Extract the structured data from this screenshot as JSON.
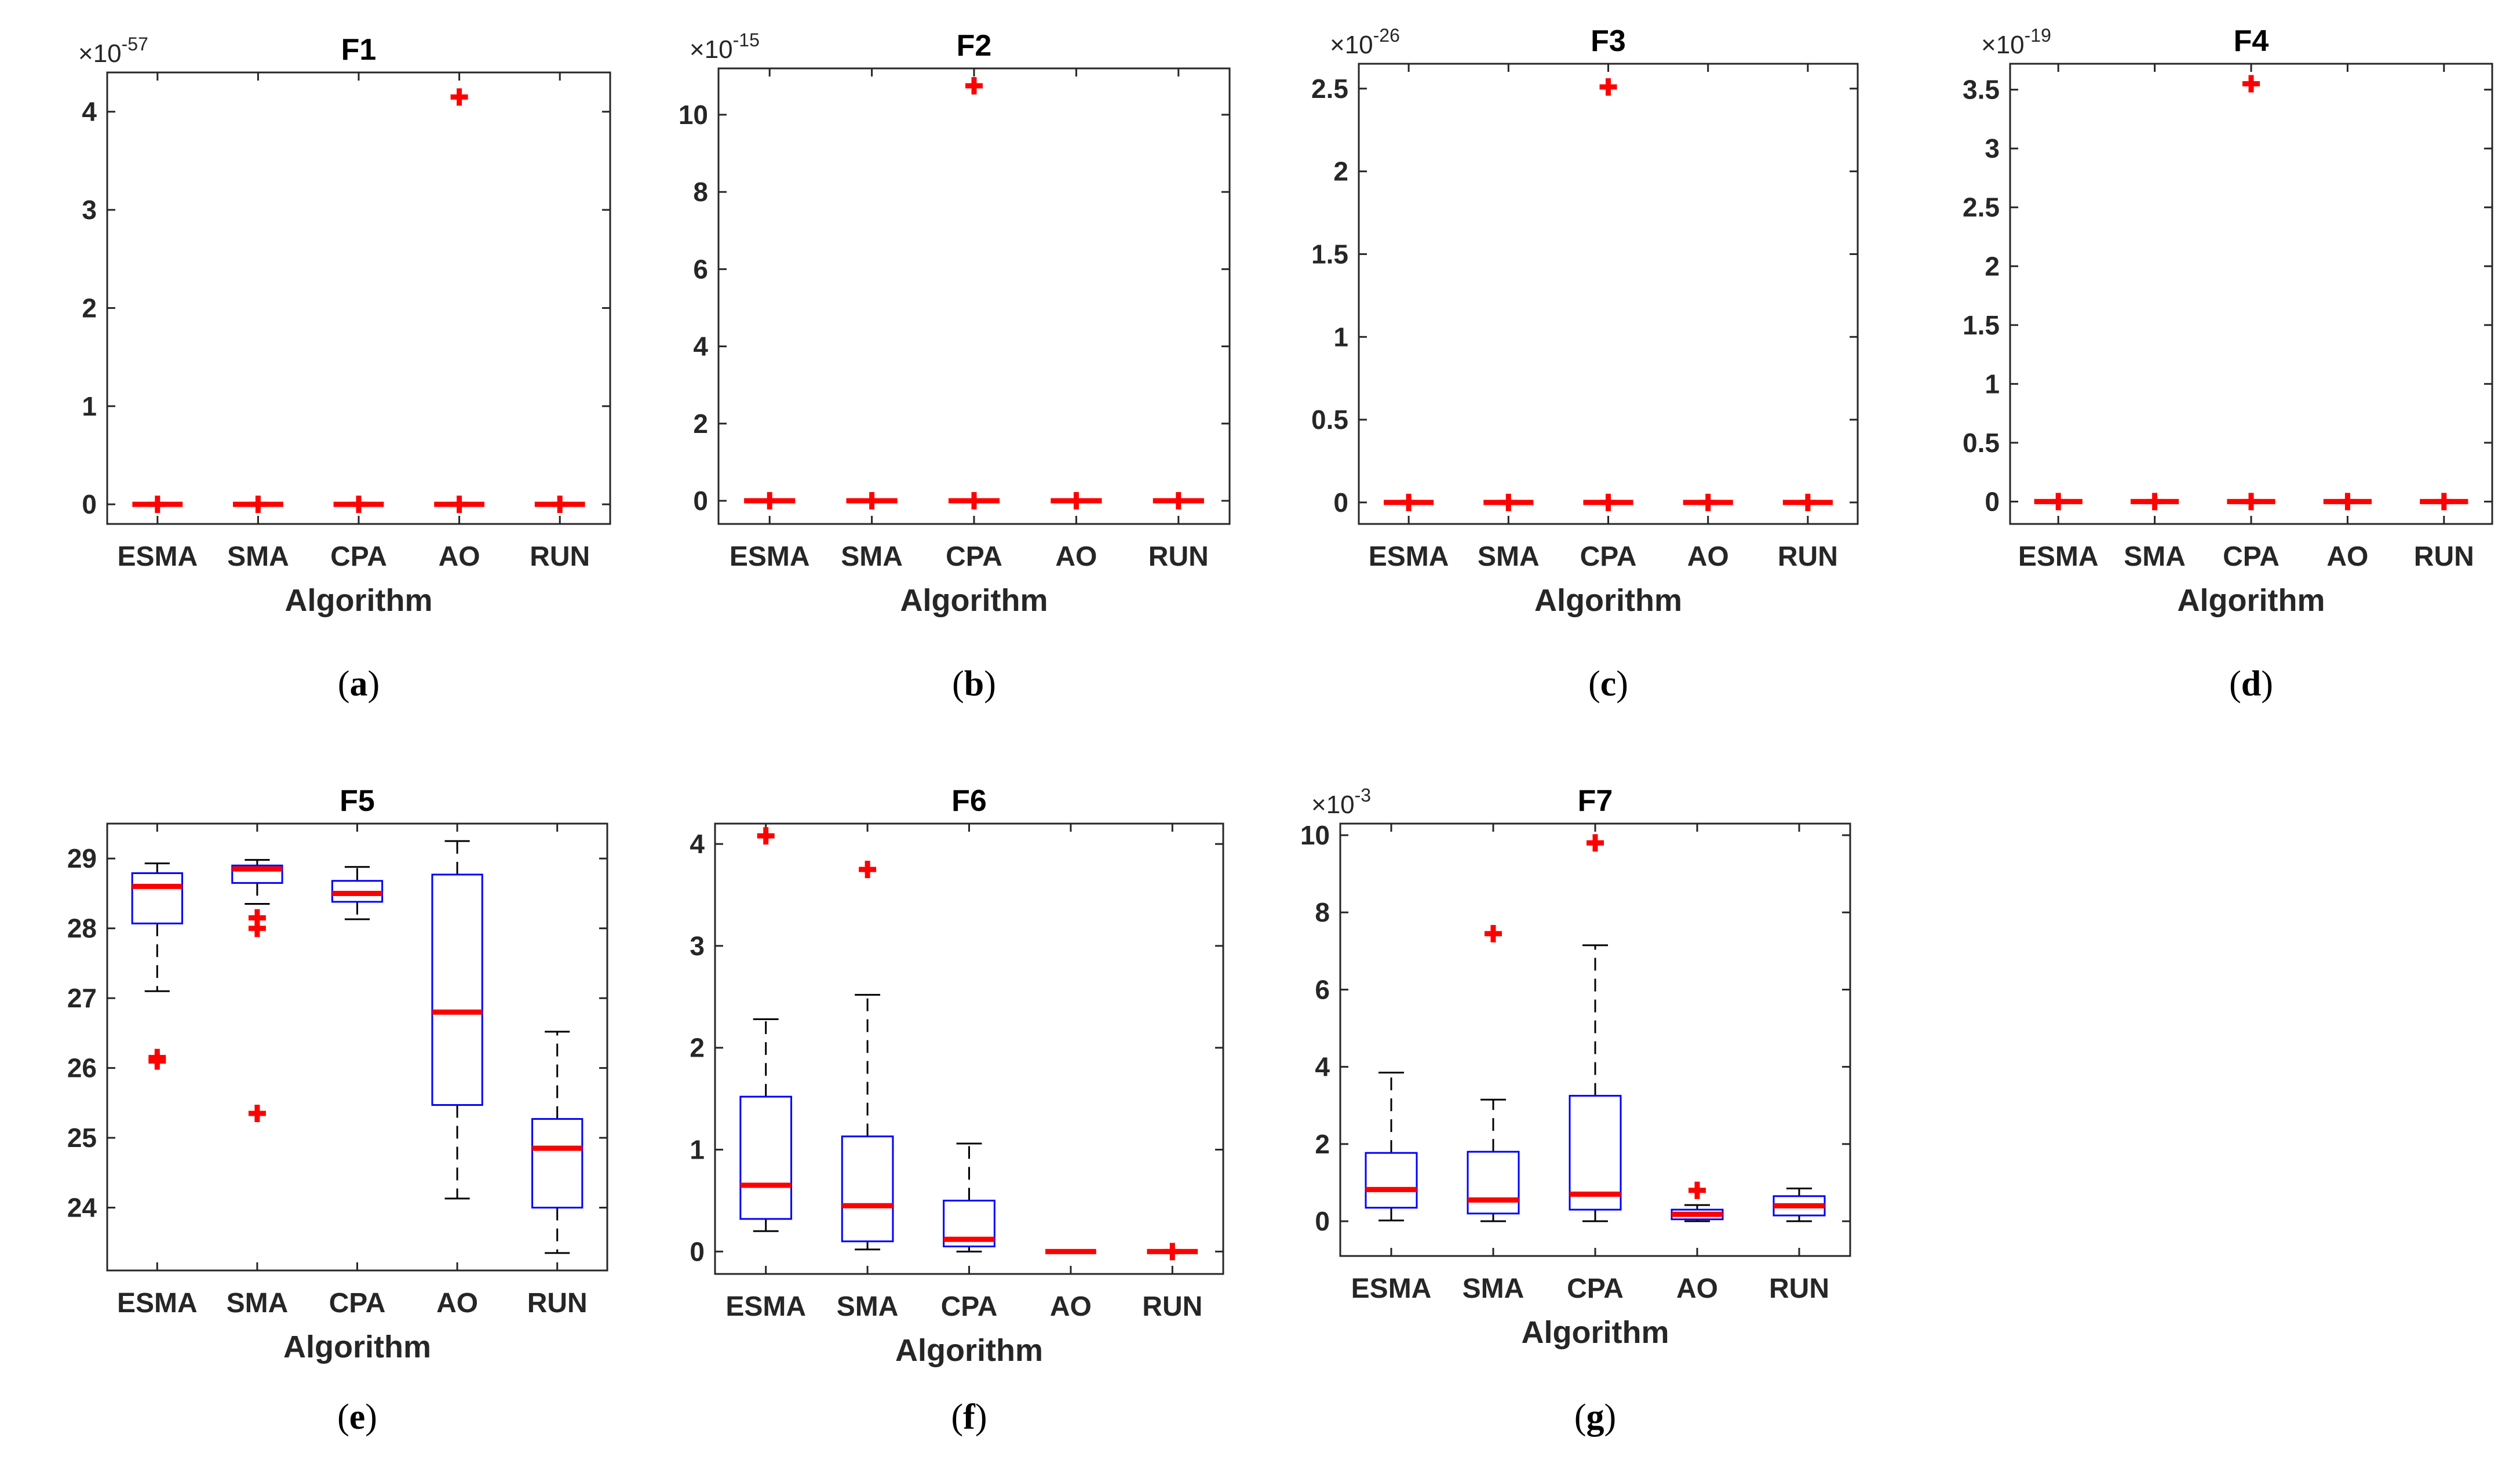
{
  "chart_data": [
    {
      "type": "box",
      "title": "F1",
      "xlabel": "Algorithm",
      "panel": "a",
      "exponent": "-57",
      "ylim": [
        -0.2,
        4.4
      ],
      "yticks": [
        0,
        1,
        2,
        3,
        4
      ],
      "categories": [
        "ESMA",
        "SMA",
        "CPA",
        "AO",
        "RUN"
      ],
      "boxes": [
        {
          "q1": 0,
          "median": 0,
          "q3": 0,
          "whisker_low": 0,
          "whisker_high": 0,
          "outliers": [
            0
          ]
        },
        {
          "q1": 0,
          "median": 0,
          "q3": 0,
          "whisker_low": 0,
          "whisker_high": 0,
          "outliers": [
            0
          ]
        },
        {
          "q1": 0,
          "median": 0,
          "q3": 0,
          "whisker_low": 0,
          "whisker_high": 0,
          "outliers": [
            0
          ]
        },
        {
          "q1": 0,
          "median": 0,
          "q3": 0,
          "whisker_low": 0,
          "whisker_high": 0,
          "outliers": [
            0,
            4.15
          ]
        },
        {
          "q1": 0,
          "median": 0,
          "q3": 0,
          "whisker_low": 0,
          "whisker_high": 0,
          "outliers": [
            0
          ]
        }
      ]
    },
    {
      "type": "box",
      "title": "F2",
      "xlabel": "Algorithm",
      "panel": "b",
      "exponent": "-15",
      "ylim": [
        -0.6,
        11.2
      ],
      "yticks": [
        0,
        2,
        4,
        6,
        8,
        10
      ],
      "categories": [
        "ESMA",
        "SMA",
        "CPA",
        "AO",
        "RUN"
      ],
      "boxes": [
        {
          "q1": 0,
          "median": 0,
          "q3": 0,
          "whisker_low": 0,
          "whisker_high": 0,
          "outliers": [
            0
          ]
        },
        {
          "q1": 0,
          "median": 0,
          "q3": 0,
          "whisker_low": 0,
          "whisker_high": 0,
          "outliers": [
            0
          ]
        },
        {
          "q1": 0,
          "median": 0,
          "q3": 0,
          "whisker_low": 0,
          "whisker_high": 0,
          "outliers": [
            0,
            10.75
          ]
        },
        {
          "q1": 0,
          "median": 0,
          "q3": 0,
          "whisker_low": 0,
          "whisker_high": 0,
          "outliers": [
            0
          ]
        },
        {
          "q1": 0,
          "median": 0,
          "q3": 0,
          "whisker_low": 0,
          "whisker_high": 0,
          "outliers": [
            0
          ]
        }
      ]
    },
    {
      "type": "box",
      "title": "F3",
      "xlabel": "Algorithm",
      "panel": "c",
      "exponent": "-26",
      "ylim": [
        -0.13,
        2.65
      ],
      "yticks": [
        0,
        0.5,
        1,
        1.5,
        2,
        2.5
      ],
      "categories": [
        "ESMA",
        "SMA",
        "CPA",
        "AO",
        "RUN"
      ],
      "boxes": [
        {
          "q1": 0,
          "median": 0,
          "q3": 0,
          "whisker_low": 0,
          "whisker_high": 0,
          "outliers": [
            0
          ]
        },
        {
          "q1": 0,
          "median": 0,
          "q3": 0,
          "whisker_low": 0,
          "whisker_high": 0,
          "outliers": [
            0
          ]
        },
        {
          "q1": 0,
          "median": 0,
          "q3": 0,
          "whisker_low": 0,
          "whisker_high": 0,
          "outliers": [
            0,
            2.51
          ]
        },
        {
          "q1": 0,
          "median": 0,
          "q3": 0,
          "whisker_low": 0,
          "whisker_high": 0,
          "outliers": [
            0
          ]
        },
        {
          "q1": 0,
          "median": 0,
          "q3": 0,
          "whisker_low": 0,
          "whisker_high": 0,
          "outliers": [
            0
          ]
        }
      ]
    },
    {
      "type": "box",
      "title": "F4",
      "xlabel": "Algorithm",
      "panel": "d",
      "exponent": "-19",
      "ylim": [
        -0.19,
        3.72
      ],
      "yticks": [
        0,
        0.5,
        1,
        1.5,
        2,
        2.5,
        3,
        3.5
      ],
      "categories": [
        "ESMA",
        "SMA",
        "CPA",
        "AO",
        "RUN"
      ],
      "boxes": [
        {
          "q1": 0,
          "median": 0,
          "q3": 0,
          "whisker_low": 0,
          "whisker_high": 0,
          "outliers": [
            0
          ]
        },
        {
          "q1": 0,
          "median": 0,
          "q3": 0,
          "whisker_low": 0,
          "whisker_high": 0,
          "outliers": [
            0
          ]
        },
        {
          "q1": 0,
          "median": 0,
          "q3": 0,
          "whisker_low": 0,
          "whisker_high": 0,
          "outliers": [
            0,
            3.55
          ]
        },
        {
          "q1": 0,
          "median": 0,
          "q3": 0,
          "whisker_low": 0,
          "whisker_high": 0,
          "outliers": [
            0
          ]
        },
        {
          "q1": 0,
          "median": 0,
          "q3": 0,
          "whisker_low": 0,
          "whisker_high": 0,
          "outliers": [
            0
          ]
        }
      ]
    },
    {
      "type": "box",
      "title": "F5",
      "xlabel": "Algorithm",
      "panel": "e",
      "exponent": "",
      "ylim": [
        23.1,
        29.5
      ],
      "yticks": [
        24,
        25,
        26,
        27,
        28,
        29
      ],
      "categories": [
        "ESMA",
        "SMA",
        "CPA",
        "AO",
        "RUN"
      ],
      "boxes": [
        {
          "q1": 28.07,
          "median": 28.6,
          "q3": 28.79,
          "whisker_low": 27.1,
          "whisker_high": 28.93,
          "outliers": [
            26.1,
            26.15
          ]
        },
        {
          "q1": 28.65,
          "median": 28.85,
          "q3": 28.9,
          "whisker_low": 28.35,
          "whisker_high": 28.98,
          "outliers": [
            28.15,
            28.0,
            25.35
          ]
        },
        {
          "q1": 28.38,
          "median": 28.5,
          "q3": 28.68,
          "whisker_low": 28.13,
          "whisker_high": 28.88,
          "outliers": []
        },
        {
          "q1": 25.47,
          "median": 26.8,
          "q3": 28.77,
          "whisker_low": 24.13,
          "whisker_high": 29.25,
          "outliers": []
        },
        {
          "q1": 24.0,
          "median": 24.85,
          "q3": 25.27,
          "whisker_low": 23.35,
          "whisker_high": 26.52,
          "outliers": []
        }
      ]
    },
    {
      "type": "box",
      "title": "F6",
      "xlabel": "Algorithm",
      "panel": "f",
      "exponent": "",
      "ylim": [
        -0.22,
        4.2
      ],
      "yticks": [
        0,
        1,
        2,
        3,
        4
      ],
      "categories": [
        "ESMA",
        "SMA",
        "CPA",
        "AO",
        "RUN"
      ],
      "boxes": [
        {
          "q1": 0.32,
          "median": 0.65,
          "q3": 1.52,
          "whisker_low": 0.2,
          "whisker_high": 2.28,
          "outliers": [
            4.08
          ]
        },
        {
          "q1": 0.1,
          "median": 0.45,
          "q3": 1.13,
          "whisker_low": 0.02,
          "whisker_high": 2.52,
          "outliers": [
            3.75
          ]
        },
        {
          "q1": 0.05,
          "median": 0.12,
          "q3": 0.5,
          "whisker_low": 0.0,
          "whisker_high": 1.06,
          "outliers": []
        },
        {
          "q1": 0,
          "median": 0,
          "q3": 0,
          "whisker_low": 0,
          "whisker_high": 0,
          "outliers": []
        },
        {
          "q1": 0,
          "median": 0,
          "q3": 0,
          "whisker_low": 0,
          "whisker_high": 0,
          "outliers": [
            0
          ]
        }
      ]
    },
    {
      "type": "box",
      "title": "F7",
      "xlabel": "Algorithm",
      "panel": "g",
      "exponent": "-3",
      "ylim": [
        -0.9,
        10.3
      ],
      "yticks": [
        0,
        2,
        4,
        6,
        8,
        10
      ],
      "categories": [
        "ESMA",
        "SMA",
        "CPA",
        "AO",
        "RUN"
      ],
      "boxes": [
        {
          "q1": 0.35,
          "median": 0.82,
          "q3": 1.77,
          "whisker_low": 0.02,
          "whisker_high": 3.85,
          "outliers": []
        },
        {
          "q1": 0.2,
          "median": 0.55,
          "q3": 1.8,
          "whisker_low": 0.0,
          "whisker_high": 3.15,
          "outliers": [
            7.45
          ]
        },
        {
          "q1": 0.3,
          "median": 0.7,
          "q3": 3.25,
          "whisker_low": 0.0,
          "whisker_high": 7.15,
          "outliers": [
            9.8
          ]
        },
        {
          "q1": 0.05,
          "median": 0.18,
          "q3": 0.3,
          "whisker_low": 0.0,
          "whisker_high": 0.42,
          "outliers": [
            0.8
          ]
        },
        {
          "q1": 0.15,
          "median": 0.4,
          "q3": 0.65,
          "whisker_low": 0.0,
          "whisker_high": 0.85,
          "outliers": []
        }
      ]
    }
  ],
  "colors": {
    "box": "#0000ff",
    "median": "#ff0000",
    "outlier": "#ff0000",
    "whisker": "#000000",
    "axis": "#262626"
  }
}
